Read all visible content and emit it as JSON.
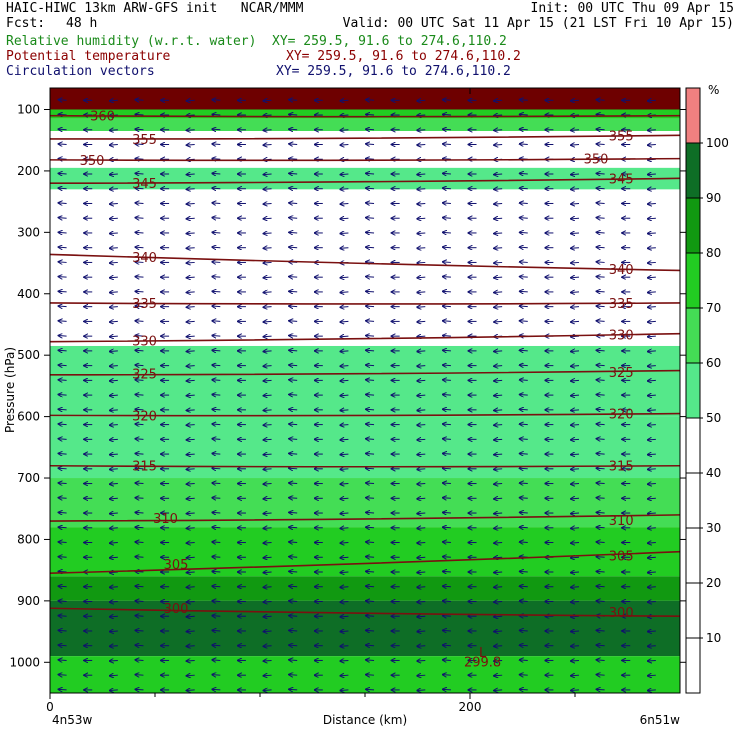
{
  "header": {
    "line1_left": "HAIC-HIWC 13km ARW-GFS init   NCAR/MMM",
    "line1_right": "Init: 00 UTC Thu 09 Apr 15",
    "fcst_label": "Fcst:",
    "fcst_value": "48 h",
    "valid": "Valid: 00 UTC Sat 11 Apr 15 (21 LST Fri 10 Apr 15)",
    "fields": [
      {
        "name": "Relative humidity (w.r.t. water)",
        "xy": "XY= 259.5, 91.6 to 274.6,110.2",
        "color": "#1a8a1a"
      },
      {
        "name": "Potential temperature",
        "xy": "XY= 259.5, 91.6 to 274.6,110.2",
        "color": "#8b0000"
      },
      {
        "name": "Circulation vectors",
        "xy": "XY= 259.5, 91.6 to 274.6,110.2",
        "color": "#10106e"
      }
    ]
  },
  "chart_data": {
    "type": "heatmap",
    "ylabel": "Pressure (hPa)",
    "xlabel": "Distance (km)",
    "x_endpoints": {
      "left": "4n53w",
      "right": "6n51w"
    },
    "xlim": [
      0,
      300
    ],
    "ylim": [
      1050,
      65
    ],
    "y_ticks": [
      100,
      200,
      300,
      400,
      500,
      600,
      700,
      800,
      900,
      1000
    ],
    "x_ticks": [
      0,
      200
    ],
    "x_minor_ticks": [
      50,
      100,
      150,
      250
    ],
    "colorbar": {
      "unit": "%",
      "levels": [
        10,
        20,
        30,
        40,
        50,
        60,
        70,
        80,
        90,
        100
      ],
      "colors": [
        "#ffffff",
        "#ffffff",
        "#ffffff",
        "#ffffff",
        "#ffffff",
        "#55e88a",
        "#44dd55",
        "#22cc22",
        "#119911",
        "#0e6e26",
        "#f08080"
      ]
    },
    "rh_bands": [
      {
        "p_top": 65,
        "p_bot": 100,
        "rh_class": "saturated",
        "color": "#6e0000"
      },
      {
        "p_top": 100,
        "p_bot": 115,
        "rh_class": "80-90",
        "color": "#22cc22"
      },
      {
        "p_top": 115,
        "p_bot": 135,
        "rh_class": "60-70",
        "color": "#44dd55"
      },
      {
        "p_top": 195,
        "p_bot": 230,
        "rh_class": "50-60",
        "color": "#55e88a"
      },
      {
        "p_top": 485,
        "p_bot": 600,
        "rh_class": "50-60",
        "color": "#55e88a"
      },
      {
        "p_top": 600,
        "p_bot": 700,
        "rh_class": "50-60",
        "color": "#55e88a"
      },
      {
        "p_top": 700,
        "p_bot": 780,
        "rh_class": "60-70",
        "color": "#44dd55"
      },
      {
        "p_top": 780,
        "p_bot": 860,
        "rh_class": "70-80",
        "color": "#22cc22"
      },
      {
        "p_top": 860,
        "p_bot": 900,
        "rh_class": "80-90",
        "color": "#119911"
      },
      {
        "p_top": 900,
        "p_bot": 990,
        "rh_class": "90-100",
        "color": "#0e6e26"
      },
      {
        "p_top": 990,
        "p_bot": 1050,
        "rh_class": "80-90",
        "color": "#22cc22"
      }
    ],
    "theta_contours": [
      {
        "label": "360",
        "p": [
          110,
          110
        ],
        "labels_at": [
          [
            25,
            110
          ]
        ]
      },
      {
        "label": "355",
        "p": [
          148,
          142
        ],
        "labels_at": [
          [
            45,
            148
          ],
          [
            272,
            142
          ]
        ]
      },
      {
        "label": "350",
        "p": [
          182,
          180
        ],
        "labels_at": [
          [
            20,
            182
          ],
          [
            260,
            180
          ]
        ]
      },
      {
        "label": "345",
        "p": [
          220,
          212
        ],
        "labels_at": [
          [
            45,
            220
          ],
          [
            272,
            212
          ]
        ]
      },
      {
        "label": "340",
        "p": [
          336,
          362
        ],
        "labels_at": [
          [
            45,
            340
          ],
          [
            272,
            360
          ]
        ]
      },
      {
        "label": "335",
        "p": [
          415,
          415
        ],
        "labels_at": [
          [
            45,
            415
          ],
          [
            272,
            415
          ]
        ]
      },
      {
        "label": "330",
        "p": [
          478,
          465
        ],
        "labels_at": [
          [
            45,
            476
          ],
          [
            272,
            466
          ]
        ]
      },
      {
        "label": "325",
        "p": [
          532,
          525
        ],
        "labels_at": [
          [
            45,
            530
          ],
          [
            272,
            527
          ]
        ]
      },
      {
        "label": "320",
        "p": [
          598,
          595
        ],
        "labels_at": [
          [
            45,
            598
          ],
          [
            272,
            595
          ]
        ]
      },
      {
        "label": "315",
        "p": [
          680,
          680
        ],
        "labels_at": [
          [
            45,
            680
          ],
          [
            272,
            680
          ]
        ]
      },
      {
        "label": "310",
        "p": [
          770,
          760
        ],
        "labels_at": [
          [
            55,
            765
          ],
          [
            272,
            768
          ]
        ]
      },
      {
        "label": "305",
        "p": [
          855,
          820
        ],
        "labels_at": [
          [
            60,
            840
          ],
          [
            272,
            826
          ]
        ]
      },
      {
        "label": "300",
        "p": [
          912,
          925
        ],
        "labels_at": [
          [
            60,
            912
          ],
          [
            272,
            918
          ]
        ]
      }
    ],
    "annotations": [
      {
        "text": "L",
        "x": 206,
        "p": 985
      },
      {
        "text": "299.8",
        "x": 206,
        "p": 1000
      }
    ],
    "vector_field": {
      "u_sign": "westward",
      "vector_rows_hPa": [
        85,
        1045
      ]
    }
  }
}
